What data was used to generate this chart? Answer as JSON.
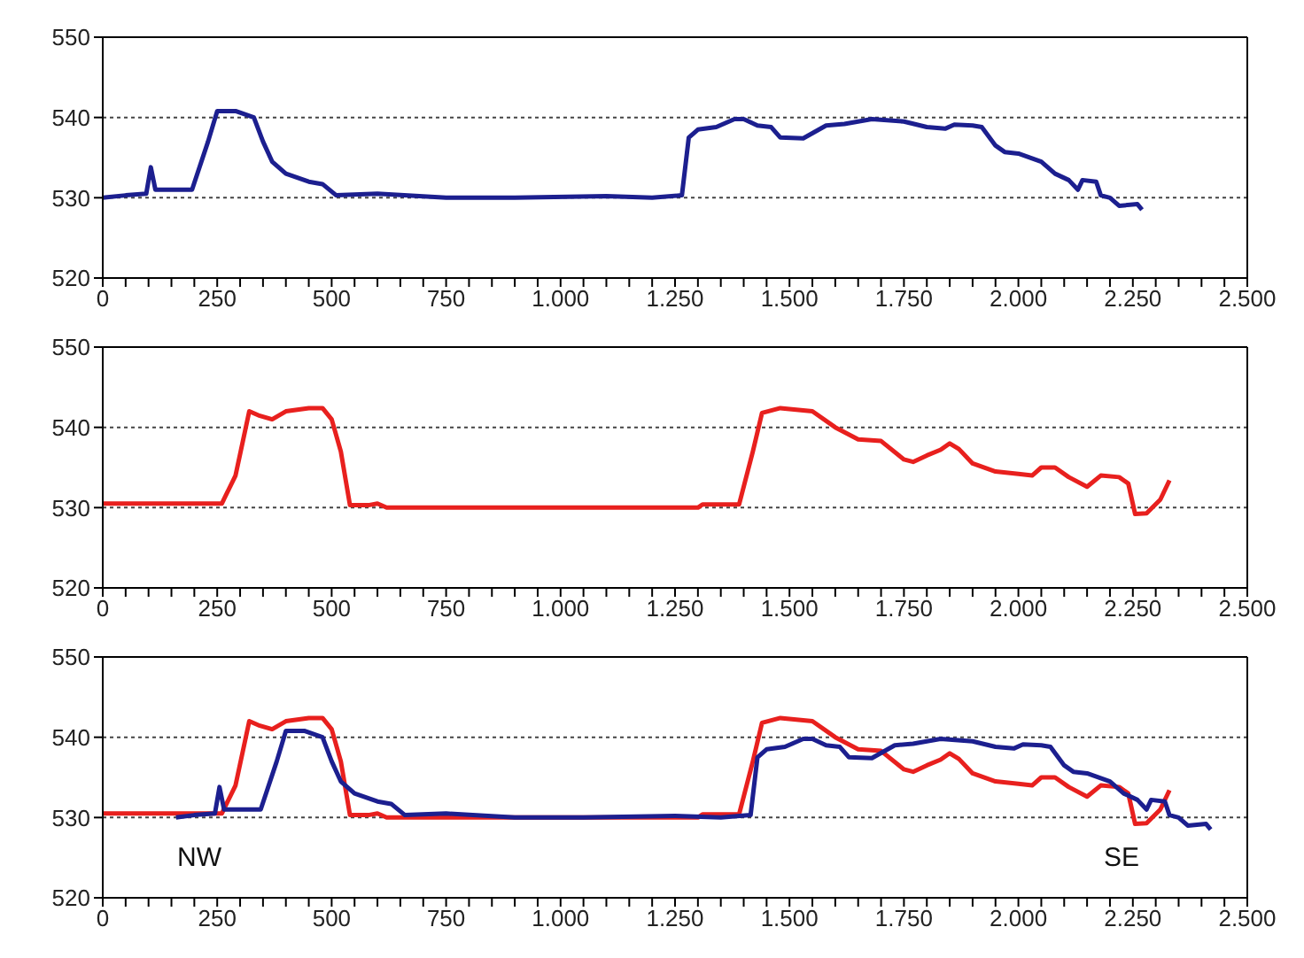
{
  "chart_data": [
    {
      "type": "line",
      "xlim": [
        0,
        2500
      ],
      "ylim": [
        520,
        550
      ],
      "yticks": [
        520,
        530,
        540,
        550
      ],
      "grid": "y",
      "xticks": [
        0,
        {
          "value": 50,
          "label": null
        },
        {
          "value": 100,
          "label": null
        },
        {
          "value": 150,
          "label": null
        },
        {
          "value": 200,
          "label": null
        },
        250,
        {
          "value": 300,
          "label": null
        },
        {
          "value": 350,
          "label": null
        },
        {
          "value": 400,
          "label": null
        },
        {
          "value": 450,
          "label": null
        },
        500,
        {
          "value": 550,
          "label": null
        },
        {
          "value": 600,
          "label": null
        },
        {
          "value": 650,
          "label": null
        },
        {
          "value": 700,
          "label": null
        },
        750,
        {
          "value": 800,
          "label": null
        },
        {
          "value": 850,
          "label": null
        },
        {
          "value": 900,
          "label": null
        },
        {
          "value": 950,
          "label": null
        },
        {
          "value": 1000,
          "label": "1.000"
        },
        {
          "value": 1050,
          "label": null
        },
        {
          "value": 1100,
          "label": null
        },
        {
          "value": 1150,
          "label": null
        },
        {
          "value": 1200,
          "label": null
        },
        {
          "value": 1250,
          "label": "1.250"
        },
        {
          "value": 1300,
          "label": null
        },
        {
          "value": 1350,
          "label": null
        },
        {
          "value": 1400,
          "label": null
        },
        {
          "value": 1450,
          "label": null
        },
        {
          "value": 1500,
          "label": "1.500"
        },
        {
          "value": 1550,
          "label": null
        },
        {
          "value": 1600,
          "label": null
        },
        {
          "value": 1650,
          "label": null
        },
        {
          "value": 1700,
          "label": null
        },
        {
          "value": 1750,
          "label": "1.750"
        },
        {
          "value": 1800,
          "label": null
        },
        {
          "value": 1850,
          "label": null
        },
        {
          "value": 1900,
          "label": null
        },
        {
          "value": 1950,
          "label": null
        },
        {
          "value": 2000,
          "label": "2.000"
        },
        {
          "value": 2050,
          "label": null
        },
        {
          "value": 2100,
          "label": null
        },
        {
          "value": 2150,
          "label": null
        },
        {
          "value": 2200,
          "label": null
        },
        {
          "value": 2250,
          "label": "2.250"
        },
        {
          "value": 2300,
          "label": null
        },
        {
          "value": 2350,
          "label": null
        },
        {
          "value": 2400,
          "label": null
        },
        {
          "value": 2450,
          "label": null
        },
        {
          "value": 2500,
          "label": "2.500"
        }
      ],
      "series": [
        {
          "color": "#1c1f8f",
          "x": [
            0,
            50,
            95,
            105,
            115,
            150,
            195,
            230,
            250,
            290,
            330,
            350,
            370,
            400,
            450,
            480,
            510,
            600,
            750,
            900,
            1100,
            1200,
            1265,
            1280,
            1300,
            1340,
            1380,
            1400,
            1430,
            1460,
            1480,
            1530,
            1580,
            1620,
            1680,
            1750,
            1800,
            1840,
            1860,
            1900,
            1920,
            1950,
            1970,
            2000,
            2050,
            2080,
            2110,
            2130,
            2140,
            2170,
            2180,
            2200,
            2220,
            2260,
            2270
          ],
          "values": [
            530,
            530.3,
            530.5,
            533.8,
            531,
            531,
            531,
            537,
            540.8,
            540.8,
            540,
            537,
            534.5,
            533,
            532,
            531.7,
            530.3,
            530.5,
            530,
            530,
            530.2,
            530,
            530.3,
            537.5,
            538.5,
            538.8,
            539.8,
            539.8,
            539,
            538.8,
            537.5,
            537.4,
            539,
            539.2,
            539.8,
            539.5,
            538.8,
            538.6,
            539.1,
            539,
            538.8,
            536.5,
            535.7,
            535.5,
            534.5,
            533,
            532.2,
            531,
            532.2,
            532,
            530.3,
            530,
            529,
            529.2,
            528.5
          ]
        }
      ]
    },
    {
      "type": "line",
      "xlim": [
        0,
        2500
      ],
      "ylim": [
        520,
        550
      ],
      "yticks": [
        520,
        530,
        540,
        550
      ],
      "grid": "y",
      "xticks": [
        0,
        {
          "value": 50,
          "label": null
        },
        {
          "value": 100,
          "label": null
        },
        {
          "value": 150,
          "label": null
        },
        {
          "value": 200,
          "label": null
        },
        250,
        {
          "value": 300,
          "label": null
        },
        {
          "value": 350,
          "label": null
        },
        {
          "value": 400,
          "label": null
        },
        {
          "value": 450,
          "label": null
        },
        500,
        {
          "value": 550,
          "label": null
        },
        {
          "value": 600,
          "label": null
        },
        {
          "value": 650,
          "label": null
        },
        {
          "value": 700,
          "label": null
        },
        750,
        {
          "value": 800,
          "label": null
        },
        {
          "value": 850,
          "label": null
        },
        {
          "value": 900,
          "label": null
        },
        {
          "value": 950,
          "label": null
        },
        {
          "value": 1000,
          "label": "1.000"
        },
        {
          "value": 1050,
          "label": null
        },
        {
          "value": 1100,
          "label": null
        },
        {
          "value": 1150,
          "label": null
        },
        {
          "value": 1200,
          "label": null
        },
        {
          "value": 1250,
          "label": "1.250"
        },
        {
          "value": 1300,
          "label": null
        },
        {
          "value": 1350,
          "label": null
        },
        {
          "value": 1400,
          "label": null
        },
        {
          "value": 1450,
          "label": null
        },
        {
          "value": 1500,
          "label": "1.500"
        },
        {
          "value": 1550,
          "label": null
        },
        {
          "value": 1600,
          "label": null
        },
        {
          "value": 1650,
          "label": null
        },
        {
          "value": 1700,
          "label": null
        },
        {
          "value": 1750,
          "label": "1.750"
        },
        {
          "value": 1800,
          "label": null
        },
        {
          "value": 1850,
          "label": null
        },
        {
          "value": 1900,
          "label": null
        },
        {
          "value": 1950,
          "label": null
        },
        {
          "value": 2000,
          "label": "2.000"
        },
        {
          "value": 2050,
          "label": null
        },
        {
          "value": 2100,
          "label": null
        },
        {
          "value": 2150,
          "label": null
        },
        {
          "value": 2200,
          "label": null
        },
        {
          "value": 2250,
          "label": "2.250"
        },
        {
          "value": 2300,
          "label": null
        },
        {
          "value": 2350,
          "label": null
        },
        {
          "value": 2400,
          "label": null
        },
        {
          "value": 2450,
          "label": null
        },
        {
          "value": 2500,
          "label": "2.500"
        }
      ],
      "series": [
        {
          "color": "#e8201e",
          "x": [
            0,
            260,
            290,
            320,
            340,
            370,
            400,
            450,
            480,
            500,
            520,
            540,
            580,
            600,
            620,
            1000,
            1300,
            1310,
            1390,
            1420,
            1440,
            1480,
            1550,
            1600,
            1650,
            1700,
            1750,
            1770,
            1800,
            1830,
            1850,
            1870,
            1900,
            1950,
            2000,
            2030,
            2050,
            2080,
            2110,
            2150,
            2180,
            2220,
            2240,
            2255,
            2280,
            2310,
            2330
          ],
          "values": [
            530.5,
            530.5,
            534,
            542,
            541.5,
            541,
            542,
            542.4,
            542.4,
            541,
            537,
            530.3,
            530.3,
            530.5,
            530,
            530,
            530,
            530.4,
            530.4,
            537,
            541.8,
            542.4,
            542,
            540,
            538.5,
            538.3,
            536,
            535.7,
            536.5,
            537.2,
            538,
            537.3,
            535.5,
            534.5,
            534.2,
            534,
            535,
            535,
            533.8,
            532.6,
            534,
            533.8,
            533,
            529.2,
            529.3,
            531,
            533.4
          ]
        }
      ]
    },
    {
      "type": "line",
      "xlim": [
        0,
        2500
      ],
      "ylim": [
        520,
        550
      ],
      "yticks": [
        520,
        530,
        540,
        550
      ],
      "grid": "y",
      "annotations": [
        "NW",
        "SE"
      ],
      "xticks": [
        0,
        {
          "value": 50,
          "label": null
        },
        {
          "value": 100,
          "label": null
        },
        {
          "value": 150,
          "label": null
        },
        {
          "value": 200,
          "label": null
        },
        250,
        {
          "value": 300,
          "label": null
        },
        {
          "value": 350,
          "label": null
        },
        {
          "value": 400,
          "label": null
        },
        {
          "value": 450,
          "label": null
        },
        500,
        {
          "value": 550,
          "label": null
        },
        {
          "value": 600,
          "label": null
        },
        {
          "value": 650,
          "label": null
        },
        {
          "value": 700,
          "label": null
        },
        750,
        {
          "value": 800,
          "label": null
        },
        {
          "value": 850,
          "label": null
        },
        {
          "value": 900,
          "label": null
        },
        {
          "value": 950,
          "label": null
        },
        {
          "value": 1000,
          "label": "1.000"
        },
        {
          "value": 1050,
          "label": null
        },
        {
          "value": 1100,
          "label": null
        },
        {
          "value": 1150,
          "label": null
        },
        {
          "value": 1200,
          "label": null
        },
        {
          "value": 1250,
          "label": "1.250"
        },
        {
          "value": 1300,
          "label": null
        },
        {
          "value": 1350,
          "label": null
        },
        {
          "value": 1400,
          "label": null
        },
        {
          "value": 1450,
          "label": null
        },
        {
          "value": 1500,
          "label": "1.500"
        },
        {
          "value": 1550,
          "label": null
        },
        {
          "value": 1600,
          "label": null
        },
        {
          "value": 1650,
          "label": null
        },
        {
          "value": 1700,
          "label": null
        },
        {
          "value": 1750,
          "label": "1.750"
        },
        {
          "value": 1800,
          "label": null
        },
        {
          "value": 1850,
          "label": null
        },
        {
          "value": 1900,
          "label": null
        },
        {
          "value": 1950,
          "label": null
        },
        {
          "value": 2000,
          "label": "2.000"
        },
        {
          "value": 2050,
          "label": null
        },
        {
          "value": 2100,
          "label": null
        },
        {
          "value": 2150,
          "label": null
        },
        {
          "value": 2200,
          "label": null
        },
        {
          "value": 2250,
          "label": "2.250"
        },
        {
          "value": 2300,
          "label": null
        },
        {
          "value": 2350,
          "label": null
        },
        {
          "value": 2400,
          "label": null
        },
        {
          "value": 2450,
          "label": null
        },
        {
          "value": 2500,
          "label": "2.500"
        }
      ],
      "series": [
        {
          "color": "#e8201e",
          "x": [
            0,
            260,
            290,
            320,
            340,
            370,
            400,
            450,
            480,
            500,
            520,
            540,
            580,
            600,
            620,
            1000,
            1300,
            1310,
            1390,
            1420,
            1440,
            1480,
            1550,
            1600,
            1650,
            1700,
            1750,
            1770,
            1800,
            1830,
            1850,
            1870,
            1900,
            1950,
            2000,
            2030,
            2050,
            2080,
            2110,
            2150,
            2180,
            2220,
            2240,
            2255,
            2280,
            2310,
            2330
          ],
          "values": [
            530.5,
            530.5,
            534,
            542,
            541.5,
            541,
            542,
            542.4,
            542.4,
            541,
            537,
            530.3,
            530.3,
            530.5,
            530,
            530,
            530,
            530.4,
            530.4,
            537,
            541.8,
            542.4,
            542,
            540,
            538.5,
            538.3,
            536,
            535.7,
            536.5,
            537.2,
            538,
            537.3,
            535.5,
            534.5,
            534.2,
            534,
            535,
            535,
            533.8,
            532.6,
            534,
            533.8,
            533,
            529.2,
            529.3,
            531,
            533.4
          ]
        },
        {
          "color": "#1c1f8f",
          "x": [
            160,
            200,
            245,
            255,
            265,
            300,
            345,
            380,
            400,
            440,
            480,
            500,
            520,
            550,
            600,
            630,
            660,
            750,
            900,
            1050,
            1250,
            1350,
            1415,
            1430,
            1450,
            1490,
            1530,
            1550,
            1580,
            1610,
            1630,
            1680,
            1730,
            1770,
            1830,
            1900,
            1950,
            1990,
            2010,
            2050,
            2070,
            2100,
            2120,
            2150,
            2200,
            2230,
            2260,
            2280,
            2290,
            2320,
            2330,
            2350,
            2370,
            2410,
            2420
          ],
          "values": [
            530,
            530.3,
            530.5,
            533.8,
            531,
            531,
            531,
            537,
            540.8,
            540.8,
            540,
            537,
            534.5,
            533,
            532,
            531.7,
            530.3,
            530.5,
            530,
            530,
            530.2,
            530,
            530.3,
            537.5,
            538.5,
            538.8,
            539.8,
            539.8,
            539,
            538.8,
            537.5,
            537.4,
            539,
            539.2,
            539.8,
            539.5,
            538.8,
            538.6,
            539.1,
            539,
            538.8,
            536.5,
            535.7,
            535.5,
            534.5,
            533,
            532.2,
            531,
            532.2,
            532,
            530.3,
            530,
            529,
            529.2,
            528.5
          ]
        }
      ]
    }
  ]
}
